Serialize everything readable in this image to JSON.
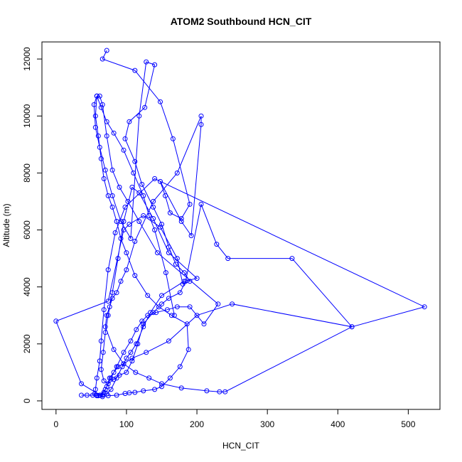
{
  "chart_data": {
    "type": "line",
    "title": "ATOM2 Southbound HCN_CIT",
    "xlabel": "HCN_CIT",
    "ylabel": "Altitude (m)",
    "xlim": [
      -20,
      545
    ],
    "ylim": [
      -300,
      12600
    ],
    "xticks": [
      0,
      100,
      200,
      300,
      400,
      500
    ],
    "yticks": [
      0,
      2000,
      4000,
      6000,
      8000,
      10000,
      12000
    ],
    "series_color": "#0000ff",
    "marker": "open-circle",
    "series": [
      {
        "x": [
          72,
          66,
          112,
          148,
          166,
          190,
          178,
          162,
          155,
          148,
          178,
          192,
          206,
          206,
          172,
          138,
          112,
          100,
          92,
          86,
          80,
          76,
          72,
          70,
          82,
          96,
          113,
          132,
          150,
          178,
          214,
          232,
          240,
          420,
          523,
          140,
          98,
          84,
          74,
          68,
          64,
          62,
          58,
          56,
          55,
          52,
          36,
          44,
          58,
          66,
          72,
          78,
          86,
          94,
          100,
          106,
          114,
          124,
          134,
          150,
          182,
          200,
          160,
          138,
          118,
          108,
          96,
          88,
          80,
          74,
          70,
          67,
          64,
          68,
          74,
          82,
          90,
          100,
          108,
          116,
          124,
          138,
          150,
          160,
          176,
          184,
          206,
          228,
          244,
          335,
          420,
          250,
          200,
          160,
          128,
          108,
          96,
          88,
          82,
          76,
          72,
          68,
          63,
          60,
          58,
          62,
          70,
          78,
          86,
          96,
          106,
          114,
          122,
          130,
          142,
          158,
          172,
          190,
          210,
          230,
          144,
          118,
          102,
          90,
          80,
          72,
          66,
          62,
          58,
          54,
          56,
          62,
          70,
          80,
          92,
          106,
          118,
          128,
          140,
          126,
          104,
          98,
          112,
          122,
          138,
          150,
          160,
          170,
          182,
          190,
          180,
          172,
          148,
          124,
          104,
          96,
          74,
          0,
          36,
          66,
          74,
          86,
          98,
          104,
          112,
          124,
          140,
          150,
          162,
          176,
          188,
          186,
          164,
          146,
          130,
          112,
          100,
          92,
          86,
          80,
          74,
          68,
          64,
          60,
          56,
          58,
          64,
          72,
          82,
          96,
          110,
          124,
          132,
          140,
          156,
          168
        ],
        "y": [
          12300,
          12000,
          11600,
          10500,
          9200,
          6900,
          6400,
          6600,
          7200,
          7700,
          6300,
          5800,
          9700,
          10000,
          8000,
          7000,
          5600,
          4600,
          4200,
          3800,
          3600,
          3300,
          3000,
          2600,
          1800,
          1300,
          1000,
          800,
          600,
          450,
          350,
          320,
          320,
          2600,
          3300,
          7800,
          6800,
          5900,
          4600,
          3200,
          2100,
          1400,
          800,
          400,
          250,
          200,
          200,
          200,
          200,
          200,
          250,
          400,
          800,
          1200,
          1500,
          1700,
          2000,
          2600,
          3100,
          3700,
          4200,
          4300,
          5200,
          6400,
          7300,
          7500,
          6300,
          5000,
          3800,
          3000,
          2400,
          1700,
          1100,
          700,
          600,
          750,
          900,
          1000,
          1400,
          2000,
          2700,
          3100,
          3400,
          3600,
          3800,
          4200,
          6900,
          5500,
          5000,
          5000,
          2600,
          3400,
          3000,
          2100,
          1700,
          1500,
          1300,
          1200,
          1000,
          800,
          500,
          300,
          200,
          180,
          180,
          200,
          400,
          800,
          1200,
          1700,
          2100,
          2500,
          2800,
          3000,
          3100,
          3200,
          3300,
          3300,
          2700,
          3400,
          5200,
          6300,
          7000,
          7500,
          8100,
          9300,
          10400,
          10700,
          10700,
          10400,
          9600,
          8900,
          8100,
          7200,
          6300,
          5700,
          10000,
          11900,
          11800,
          10300,
          9800,
          9200,
          8400,
          7600,
          6800,
          6200,
          5400,
          4800,
          4500,
          4200,
          4100,
          5000,
          6100,
          6500,
          6200,
          6000,
          3500,
          2800,
          600,
          150,
          180,
          200,
          260,
          280,
          300,
          350,
          400,
          500,
          800,
          1200,
          1800,
          2700,
          3000,
          3300,
          3700,
          4400,
          5200,
          5700,
          6300,
          6800,
          7200,
          7800,
          8500,
          9300,
          10000,
          10700,
          10300,
          9800,
          9400,
          8800,
          8000,
          7200,
          6500,
          6000,
          4500,
          3000
        ]
      }
    ]
  }
}
